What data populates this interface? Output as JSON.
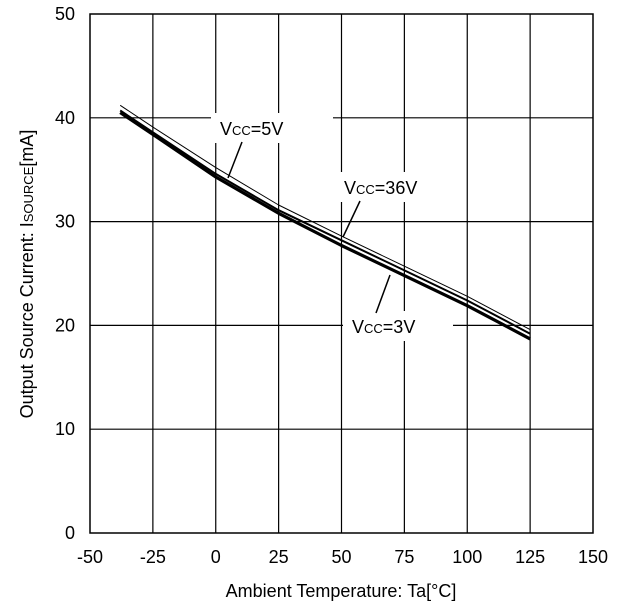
{
  "chart_data": {
    "type": "line",
    "title": "",
    "xlabel": "Ambient Temperature: Ta[°C]",
    "ylabel_prefix": "Output Source Current: I",
    "ylabel_sub": "SOURCE",
    "ylabel_suffix": "[mA]",
    "xlim": [
      -50,
      150
    ],
    "ylim": [
      0,
      50
    ],
    "xticks": [
      "-50",
      "-25",
      "0",
      "25",
      "50",
      "75",
      "100",
      "125",
      "150"
    ],
    "yticks": [
      "0",
      "10",
      "20",
      "30",
      "40",
      "50"
    ],
    "grid": true,
    "series": [
      {
        "name": "VCC=5V",
        "label_prefix": "V",
        "label_sub": "CC",
        "label_suffix": "=5V",
        "x": [
          -38,
          -25,
          0,
          25,
          50,
          75,
          100,
          125
        ],
        "y": [
          40.7,
          38.6,
          34.6,
          31.1,
          28.2,
          25.3,
          22.4,
          19.2
        ]
      },
      {
        "name": "VCC=36V",
        "label_prefix": "V",
        "label_sub": "CC",
        "label_suffix": "=36V",
        "x": [
          -38,
          -25,
          0,
          25,
          50,
          75,
          100,
          125
        ],
        "y": [
          41.2,
          39.1,
          35.2,
          31.6,
          28.6,
          25.7,
          22.8,
          19.6
        ]
      },
      {
        "name": "VCC=3V",
        "label_prefix": "V",
        "label_sub": "CC",
        "label_suffix": "=3V",
        "x": [
          -38,
          -25,
          0,
          25,
          50,
          75,
          100,
          125
        ],
        "y": [
          40.5,
          38.4,
          34.3,
          30.8,
          27.7,
          24.8,
          21.9,
          18.7
        ]
      }
    ]
  }
}
